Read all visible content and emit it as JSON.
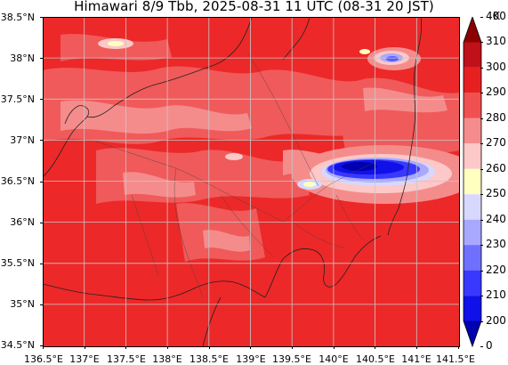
{
  "title": "Himawari 8/9 Tbb, 2025-08-31 11 UTC (08-31 20 JST)",
  "map": {
    "lon_range": [
      136.5,
      141.5
    ],
    "lat_range": [
      34.5,
      38.5
    ],
    "grid": true,
    "lat_ticks": [
      "38.5°N",
      "38°N",
      "37.5°N",
      "37°N",
      "36.5°N",
      "36°N",
      "35.5°N",
      "35°N",
      "34.5°N"
    ],
    "lon_ticks": [
      "136.5°E",
      "137°E",
      "137.5°E",
      "138°E",
      "138.5°E",
      "139°E",
      "139.5°E",
      "140°E",
      "140.5°E",
      "141°E",
      "141.5°E"
    ]
  },
  "colorbar": {
    "unit": "K",
    "labels": [
      "400",
      "310",
      "300",
      "290",
      "280",
      "270",
      "260",
      "250",
      "240",
      "230",
      "220",
      "210",
      "200",
      "0"
    ],
    "colors": [
      "#8b0000",
      "#c0101a",
      "#e62020",
      "#f05050",
      "#f58c8c",
      "#fcc8c8",
      "#ffffc0",
      "#d8d8ff",
      "#a8a8ff",
      "#7070ff",
      "#3838ff",
      "#1010e8",
      "#0000b0"
    ]
  }
}
